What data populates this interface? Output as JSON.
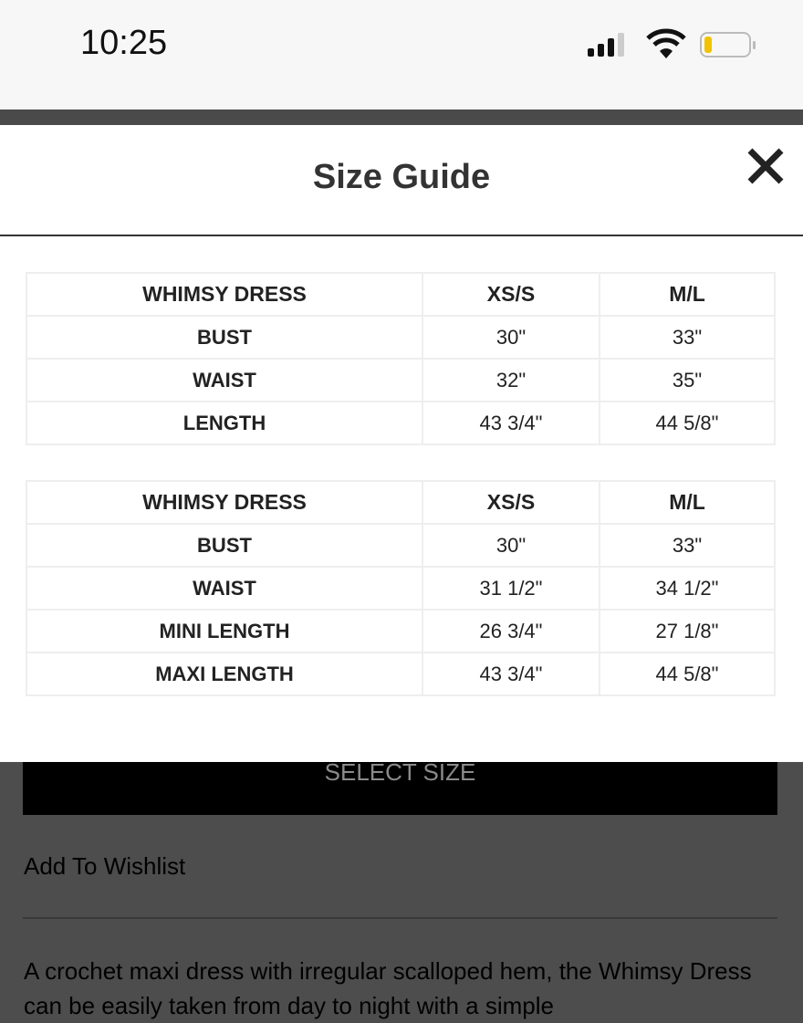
{
  "status_bar": {
    "time": "10:25",
    "battery_color": "#f2c200"
  },
  "modal": {
    "title": "Size Guide",
    "close_icon": "close-icon",
    "tables": [
      {
        "header": [
          "WHIMSY DRESS",
          "XS/S",
          "M/L"
        ],
        "rows": [
          [
            "BUST",
            "30\"",
            "33\""
          ],
          [
            "WAIST",
            "32\"",
            "35\""
          ],
          [
            "LENGTH",
            "43 3/4\"",
            "44 5/8\""
          ]
        ]
      },
      {
        "header": [
          "WHIMSY DRESS",
          "XS/S",
          "M/L"
        ],
        "rows": [
          [
            "BUST",
            "30\"",
            "33\""
          ],
          [
            "WAIST",
            "31 1/2\"",
            "34 1/2\""
          ],
          [
            "MINI LENGTH",
            "26 3/4\"",
            "27 1/8\""
          ],
          [
            "MAXI LENGTH",
            "43 3/4\"",
            "44 5/8\""
          ]
        ]
      }
    ]
  },
  "page": {
    "select_size": "SELECT SIZE",
    "wishlist": "Add To Wishlist",
    "description": "A crochet maxi dress with irregular scalloped hem, the Whimsy Dress can be easily taken from day to night with a simple"
  }
}
